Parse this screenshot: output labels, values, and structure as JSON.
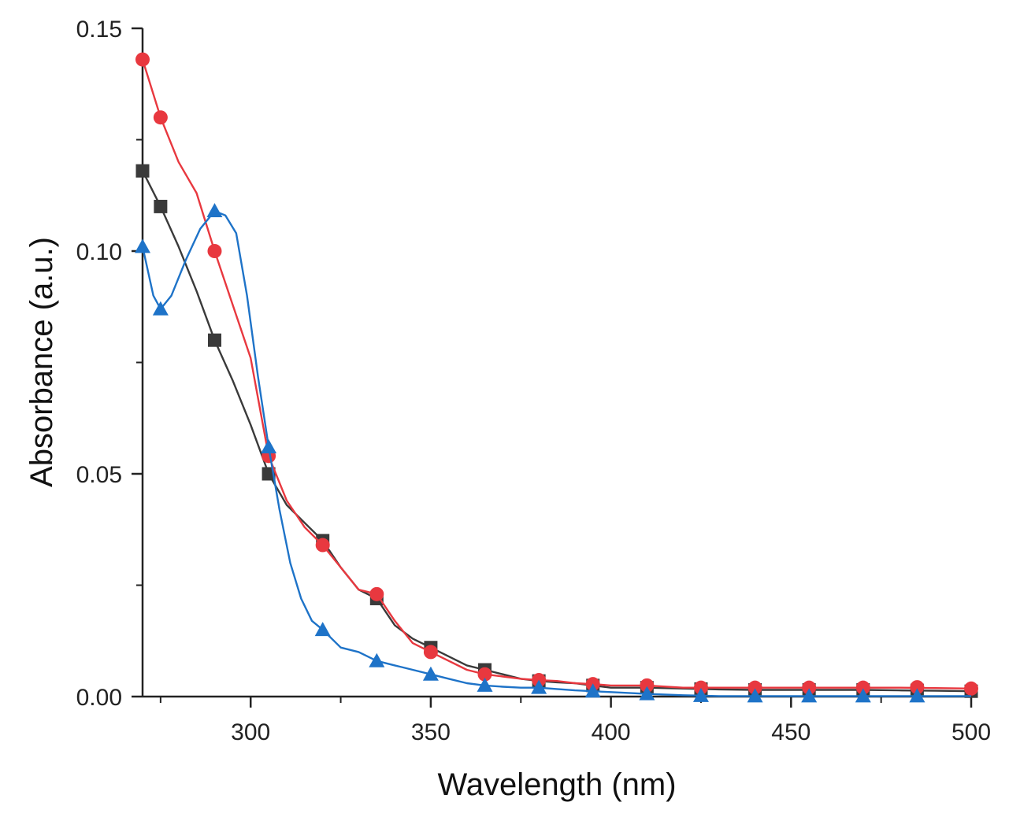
{
  "chart_data": {
    "type": "line",
    "title": "",
    "xlabel": "Wavelength (nm)",
    "ylabel": "Absorbance (a.u.)",
    "xlim": [
      270,
      500
    ],
    "ylim": [
      0,
      0.15
    ],
    "x_ticks": [
      300,
      350,
      400,
      450,
      500
    ],
    "x_tick_labels": [
      "300",
      "350",
      "400",
      "450",
      "500"
    ],
    "y_ticks": [
      0,
      0.05,
      0.1,
      0.15
    ],
    "y_tick_labels": [
      "0.00",
      "0.05",
      "0.10",
      "0.15"
    ],
    "x_minor_ticks": [
      275,
      325,
      375,
      425,
      475
    ],
    "y_minor_ticks": [
      0.025,
      0.075,
      0.125
    ],
    "grid": false,
    "series": [
      {
        "name": "black",
        "color": "#3a3a3a",
        "marker": "square",
        "x": [
          270,
          275,
          280,
          285,
          290,
          295,
          300,
          305,
          310,
          315,
          320,
          325,
          330,
          335,
          340,
          345,
          350,
          355,
          360,
          365,
          370,
          375,
          380,
          385,
          390,
          395,
          400,
          410,
          420,
          430,
          440,
          450,
          460,
          470,
          480,
          490,
          500
        ],
        "y": [
          0.118,
          0.11,
          0.101,
          0.091,
          0.08,
          0.071,
          0.061,
          0.05,
          0.043,
          0.039,
          0.035,
          0.029,
          0.024,
          0.022,
          0.016,
          0.013,
          0.011,
          0.009,
          0.007,
          0.006,
          0.005,
          0.004,
          0.0035,
          0.0032,
          0.003,
          0.0025,
          0.002,
          0.002,
          0.0018,
          0.0016,
          0.0015,
          0.0015,
          0.0015,
          0.0015,
          0.0014,
          0.0013,
          0.0012
        ],
        "marker_x": [
          270,
          275,
          290,
          305,
          320,
          335,
          350,
          365,
          380,
          395,
          410,
          425,
          440,
          455,
          470,
          485,
          500
        ],
        "marker_y": [
          0.118,
          0.11,
          0.08,
          0.05,
          0.035,
          0.022,
          0.011,
          0.006,
          0.0035,
          0.0025,
          0.002,
          0.0017,
          0.0015,
          0.0015,
          0.0015,
          0.0014,
          0.0012
        ]
      },
      {
        "name": "red",
        "color": "#e8383f",
        "marker": "circle",
        "x": [
          270,
          275,
          280,
          285,
          290,
          295,
          300,
          305,
          310,
          315,
          320,
          325,
          330,
          335,
          340,
          345,
          350,
          355,
          360,
          365,
          370,
          375,
          380,
          385,
          390,
          395,
          400,
          410,
          420,
          430,
          440,
          450,
          460,
          470,
          480,
          490,
          500
        ],
        "y": [
          0.143,
          0.13,
          0.12,
          0.113,
          0.1,
          0.088,
          0.076,
          0.054,
          0.044,
          0.038,
          0.034,
          0.029,
          0.024,
          0.023,
          0.017,
          0.012,
          0.01,
          0.008,
          0.006,
          0.005,
          0.0045,
          0.004,
          0.0037,
          0.0035,
          0.003,
          0.0028,
          0.0025,
          0.0025,
          0.002,
          0.002,
          0.002,
          0.002,
          0.002,
          0.002,
          0.002,
          0.0019,
          0.0018
        ],
        "marker_x": [
          270,
          275,
          290,
          305,
          320,
          335,
          350,
          365,
          380,
          395,
          410,
          425,
          440,
          455,
          470,
          485,
          500
        ],
        "marker_y": [
          0.143,
          0.13,
          0.1,
          0.054,
          0.034,
          0.023,
          0.01,
          0.005,
          0.0037,
          0.0028,
          0.0025,
          0.002,
          0.002,
          0.002,
          0.002,
          0.0021,
          0.0018
        ]
      },
      {
        "name": "blue",
        "color": "#1e73c8",
        "marker": "triangle",
        "x": [
          270,
          273,
          275,
          278,
          282,
          286,
          290,
          293,
          296,
          299,
          302,
          305,
          308,
          311,
          314,
          317,
          320,
          325,
          330,
          335,
          340,
          345,
          350,
          355,
          360,
          365,
          370,
          375,
          380,
          385,
          390,
          395,
          400,
          410,
          420,
          430,
          440,
          450,
          460,
          470,
          480,
          490,
          500
        ],
        "y": [
          0.101,
          0.09,
          0.087,
          0.09,
          0.098,
          0.105,
          0.109,
          0.108,
          0.104,
          0.09,
          0.072,
          0.056,
          0.042,
          0.03,
          0.022,
          0.017,
          0.015,
          0.011,
          0.01,
          0.008,
          0.007,
          0.006,
          0.005,
          0.004,
          0.003,
          0.0025,
          0.0022,
          0.002,
          0.002,
          0.0017,
          0.0014,
          0.0012,
          0.001,
          0.0006,
          0.0003,
          0.0001,
          0.0001,
          0.0001,
          0.0001,
          0.0001,
          0.0001,
          0.0001,
          0.0001
        ],
        "marker_x": [
          270,
          275,
          290,
          305,
          320,
          335,
          350,
          365,
          380,
          395,
          410,
          425,
          440,
          455,
          470,
          485
        ],
        "marker_y": [
          0.101,
          0.087,
          0.109,
          0.056,
          0.015,
          0.008,
          0.005,
          0.0025,
          0.002,
          0.0012,
          0.0006,
          0.0002,
          0.0001,
          0.0001,
          0.0001,
          0.0001
        ]
      }
    ]
  }
}
